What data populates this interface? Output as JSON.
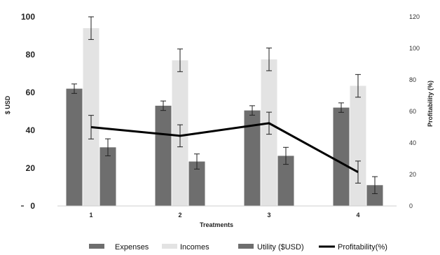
{
  "chart_data": {
    "type": "bar",
    "xlabel": "Treatments",
    "ylabel": "$ USD",
    "ylabel_right": "Profitability (%)",
    "categories": [
      "1",
      "2",
      "3",
      "4"
    ],
    "ylim": [
      0,
      100
    ],
    "yticks": [
      "0",
      "20",
      "40",
      "60",
      "80",
      "100"
    ],
    "y2lim": [
      0,
      120
    ],
    "y2ticks": [
      "0",
      "20",
      "40",
      "60",
      "80",
      "100",
      "120"
    ],
    "grid": false,
    "legend_position": "bottom",
    "series": [
      {
        "name": "Expenses",
        "kind": "bar",
        "axis": "left",
        "color": "#6e6e6e",
        "values": [
          62,
          53,
          50.5,
          52
        ],
        "errors": [
          2.5,
          2.5,
          2.5,
          2.5
        ]
      },
      {
        "name": "Incomes",
        "kind": "bar",
        "axis": "left",
        "color": "#e3e3e3",
        "values": [
          94,
          77,
          77.5,
          63.5
        ],
        "errors": [
          6,
          6,
          6,
          6
        ]
      },
      {
        "name": "Utility ($USD)",
        "kind": "bar",
        "axis": "left",
        "color": "#6e6e6e",
        "values": [
          31,
          23.5,
          26.5,
          11
        ],
        "errors": [
          4.5,
          4,
          4.5,
          4.5
        ]
      },
      {
        "name": "Profitability(%)",
        "kind": "line",
        "axis": "right",
        "color": "#000000",
        "values": [
          50,
          44.5,
          52.5,
          21.5
        ],
        "errors": [
          7.5,
          7,
          7,
          7
        ]
      }
    ]
  }
}
